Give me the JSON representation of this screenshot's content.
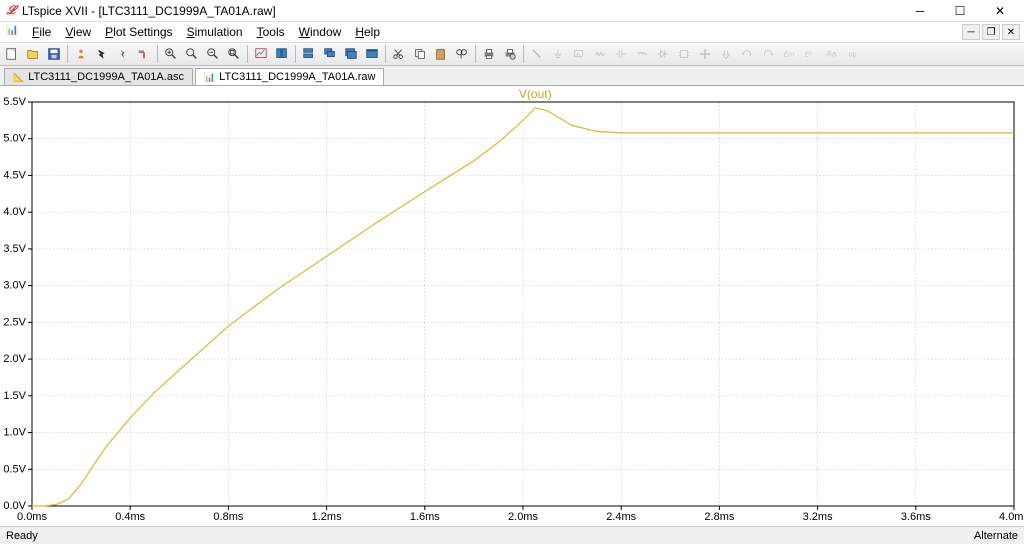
{
  "window": {
    "title": "LTspice XVII - [LTC3111_DC1999A_TA01A.raw]"
  },
  "menu": {
    "items": [
      "File",
      "View",
      "Plot Settings",
      "Simulation",
      "Tools",
      "Window",
      "Help"
    ]
  },
  "tabs": [
    {
      "label": "LTC3111_DC1999A_TA01A.asc",
      "active": false
    },
    {
      "label": "LTC3111_DC1999A_TA01A.raw",
      "active": true
    }
  ],
  "plot": {
    "trace_name": "V(out)",
    "trace_color": "#e8b030",
    "background": "#ffffff",
    "grid_color": "#b8b8b8",
    "axis_color": "#000000",
    "x": {
      "min": 0.0,
      "max": 4.0,
      "unit": "ms",
      "ticks": [
        0.0,
        0.4,
        0.8,
        1.2,
        1.6,
        2.0,
        2.4,
        2.8,
        3.2,
        3.6,
        4.0
      ],
      "labels": [
        "0.0ms",
        "0.4ms",
        "0.8ms",
        "1.2ms",
        "1.6ms",
        "2.0ms",
        "2.4ms",
        "2.8ms",
        "3.2ms",
        "3.6ms",
        "4.0ms"
      ]
    },
    "y": {
      "min": 0.0,
      "max": 5.5,
      "unit": "V",
      "ticks": [
        0.0,
        0.5,
        1.0,
        1.5,
        2.0,
        2.5,
        3.0,
        3.5,
        4.0,
        4.5,
        5.0,
        5.5
      ],
      "labels": [
        "0.0V",
        "0.5V",
        "1.0V",
        "1.5V",
        "2.0V",
        "2.5V",
        "3.0V",
        "3.5V",
        "4.0V",
        "4.5V",
        "5.0V",
        "5.5V"
      ]
    },
    "series": [
      [
        0.0,
        0.0
      ],
      [
        0.05,
        0.0
      ],
      [
        0.1,
        0.02
      ],
      [
        0.15,
        0.1
      ],
      [
        0.2,
        0.3
      ],
      [
        0.25,
        0.55
      ],
      [
        0.3,
        0.8
      ],
      [
        0.35,
        1.0
      ],
      [
        0.4,
        1.2
      ],
      [
        0.5,
        1.55
      ],
      [
        0.6,
        1.85
      ],
      [
        0.7,
        2.15
      ],
      [
        0.8,
        2.45
      ],
      [
        0.9,
        2.7
      ],
      [
        1.0,
        2.95
      ],
      [
        1.2,
        3.4
      ],
      [
        1.4,
        3.85
      ],
      [
        1.6,
        4.28
      ],
      [
        1.8,
        4.7
      ],
      [
        1.9,
        4.95
      ],
      [
        2.0,
        5.25
      ],
      [
        2.05,
        5.42
      ],
      [
        2.1,
        5.38
      ],
      [
        2.15,
        5.28
      ],
      [
        2.2,
        5.18
      ],
      [
        2.3,
        5.1
      ],
      [
        2.4,
        5.08
      ],
      [
        2.6,
        5.08
      ],
      [
        3.0,
        5.08
      ],
      [
        3.5,
        5.08
      ],
      [
        4.0,
        5.08
      ]
    ]
  },
  "status": {
    "left": "Ready",
    "right": "Alternate"
  },
  "toolbar_icons": [
    "new-schematic",
    "open",
    "save",
    "settings",
    "run",
    "halt",
    "hammer",
    "zoom-in",
    "zoom-pan",
    "zoom-out",
    "zoom-fit",
    "autorange",
    "toggle-1",
    "toggle-2",
    "toggle-3",
    "toggle-4",
    "cut",
    "copy",
    "paste",
    "find",
    "print",
    "print-setup",
    "draw-wire",
    "label",
    "ground",
    "resistor",
    "capacitor",
    "inductor",
    "diode",
    "component",
    "move",
    "drag",
    "undo",
    "redo",
    "rotate",
    "mirror",
    "text",
    "spice-directive"
  ]
}
